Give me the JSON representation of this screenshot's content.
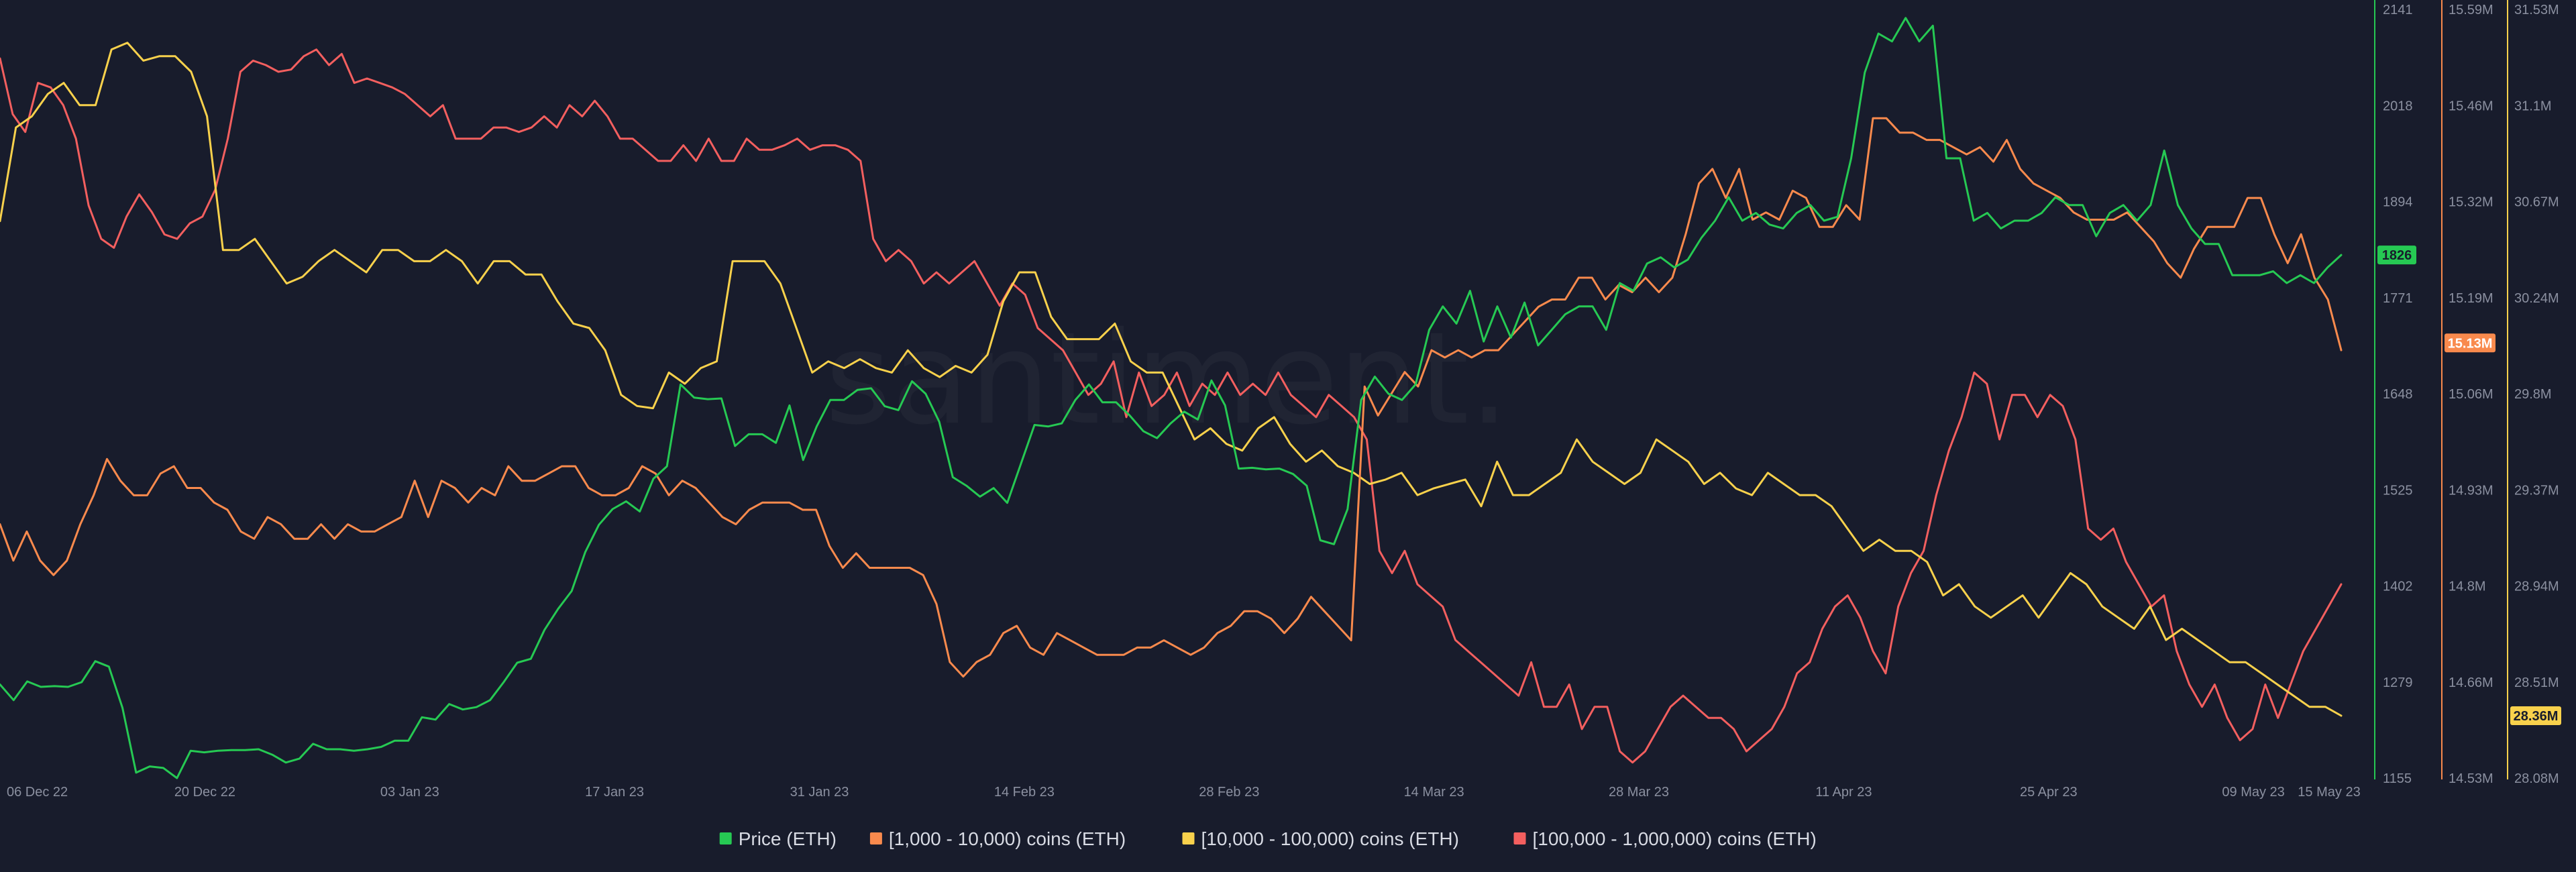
{
  "chart_data": {
    "type": "line",
    "watermark": "santiment.",
    "x_labels": [
      "06 Dec 22",
      "20 Dec 22",
      "03 Jan 23",
      "17 Jan 23",
      "31 Jan 23",
      "14 Feb 23",
      "28 Feb 23",
      "14 Mar 23",
      "28 Mar 23",
      "11 Apr 23",
      "25 Apr 23",
      "09 May 23",
      "15 May 23"
    ],
    "x_range": [
      "2022-12-06",
      "2023-05-15"
    ],
    "x_label_positions_days": [
      0,
      14,
      28,
      42,
      56,
      70,
      84,
      98,
      112,
      126,
      140,
      154,
      160
    ],
    "axes": [
      {
        "id": "price",
        "series": "Price (ETH)",
        "color": "#26c953",
        "min": 1155,
        "max": 2141,
        "ticks": [
          "2141",
          "2018",
          "1894",
          "1771",
          "1648",
          "1525",
          "1402",
          "1279",
          "1155"
        ],
        "current": "1826"
      },
      {
        "id": "c1k",
        "series": "[1,000 - 10,000) coins (ETH)",
        "color": "#f98a4d",
        "min": 14.53,
        "max": 15.59,
        "ticks": [
          "15.59M",
          "15.46M",
          "15.32M",
          "15.19M",
          "15.06M",
          "14.93M",
          "14.8M",
          "14.66M",
          "14.53M"
        ],
        "current": "15.13M"
      },
      {
        "id": "c10k",
        "series": "[10,000 - 100,000) coins (ETH)",
        "color": "#f8d14c",
        "min": 28.08,
        "max": 31.53,
        "ticks": [
          "31.53M",
          "31.1M",
          "30.67M",
          "30.24M",
          "29.8M",
          "29.37M",
          "28.94M",
          "28.51M",
          "28.08M"
        ],
        "current": "28.36M"
      }
    ],
    "series": [
      {
        "name": "Price (ETH)",
        "color": "#26c953",
        "axis": "price",
        "values": [
          1275,
          1255,
          1279,
          1272,
          1273,
          1272,
          1278,
          1305,
          1298,
          1245,
          1162,
          1170,
          1168,
          1155,
          1190,
          1188,
          1190,
          1191,
          1191,
          1192,
          1185,
          1175,
          1180,
          1199,
          1192,
          1192,
          1190,
          1192,
          1195,
          1203,
          1203,
          1233,
          1230,
          1250,
          1243,
          1246,
          1255,
          1278,
          1303,
          1308,
          1345,
          1372,
          1395,
          1445,
          1480,
          1500,
          1510,
          1497,
          1539,
          1555,
          1660,
          1643,
          1641,
          1642,
          1581,
          1596,
          1596,
          1585,
          1633,
          1563,
          1606,
          1640,
          1640,
          1653,
          1655,
          1632,
          1627,
          1664,
          1648,
          1612,
          1541,
          1530,
          1516,
          1527,
          1508,
          1558,
          1608,
          1606,
          1610,
          1640,
          1660,
          1637,
          1637,
          1620,
          1600,
          1591,
          1610,
          1625,
          1615,
          1665,
          1633,
          1552,
          1553,
          1551,
          1552,
          1545,
          1530,
          1460,
          1455,
          1500,
          1640,
          1670,
          1648,
          1640,
          1660,
          1730,
          1760,
          1738,
          1780,
          1715,
          1760,
          1720,
          1765,
          1710,
          1730,
          1750,
          1760,
          1760,
          1730,
          1790,
          1780,
          1815,
          1823,
          1810,
          1820,
          1848,
          1870,
          1900,
          1870,
          1880,
          1865,
          1860,
          1880,
          1890,
          1870,
          1875,
          1950,
          2060,
          2110,
          2100,
          2130,
          2100,
          2120,
          1950,
          1950,
          1870,
          1880,
          1860,
          1870,
          1870,
          1880,
          1900,
          1890,
          1890,
          1850,
          1880,
          1890,
          1870,
          1890,
          1960,
          1890,
          1860,
          1840,
          1840,
          1800,
          1800,
          1800,
          1805,
          1790,
          1800,
          1790,
          1810,
          1826
        ]
      },
      {
        "name": "[1,000 - 10,000) coins (ETH)",
        "color": "#f98a4d",
        "axis": "c1k",
        "values": [
          14.88,
          14.83,
          14.87,
          14.83,
          14.81,
          14.83,
          14.88,
          14.92,
          14.97,
          14.94,
          14.92,
          14.92,
          14.95,
          14.96,
          14.93,
          14.93,
          14.91,
          14.9,
          14.87,
          14.86,
          14.89,
          14.88,
          14.86,
          14.86,
          14.88,
          14.86,
          14.88,
          14.87,
          14.87,
          14.88,
          14.89,
          14.94,
          14.89,
          14.94,
          14.93,
          14.91,
          14.93,
          14.92,
          14.96,
          14.94,
          14.94,
          14.95,
          14.96,
          14.96,
          14.93,
          14.92,
          14.92,
          14.93,
          14.96,
          14.95,
          14.92,
          14.94,
          14.93,
          14.91,
          14.89,
          14.88,
          14.9,
          14.91,
          14.91,
          14.91,
          14.9,
          14.9,
          14.85,
          14.82,
          14.84,
          14.82,
          14.82,
          14.82,
          14.82,
          14.81,
          14.77,
          14.69,
          14.67,
          14.69,
          14.7,
          14.73,
          14.74,
          14.71,
          14.7,
          14.73,
          14.72,
          14.71,
          14.7,
          14.7,
          14.7,
          14.71,
          14.71,
          14.72,
          14.71,
          14.7,
          14.71,
          14.73,
          14.74,
          14.76,
          14.76,
          14.75,
          14.73,
          14.75,
          14.78,
          14.76,
          14.74,
          14.72,
          15.07,
          15.03,
          15.06,
          15.09,
          15.07,
          15.12,
          15.11,
          15.12,
          15.11,
          15.12,
          15.12,
          15.14,
          15.16,
          15.18,
          15.19,
          15.19,
          15.22,
          15.22,
          15.19,
          15.21,
          15.2,
          15.22,
          15.2,
          15.22,
          15.28,
          15.35,
          15.37,
          15.33,
          15.37,
          15.3,
          15.31,
          15.3,
          15.34,
          15.33,
          15.29,
          15.29,
          15.32,
          15.3,
          15.44,
          15.44,
          15.42,
          15.42,
          15.41,
          15.41,
          15.4,
          15.39,
          15.4,
          15.38,
          15.41,
          15.37,
          15.35,
          15.34,
          15.33,
          15.31,
          15.3,
          15.3,
          15.3,
          15.31,
          15.29,
          15.27,
          15.24,
          15.22,
          15.26,
          15.29,
          15.29,
          15.29,
          15.33,
          15.33,
          15.28,
          15.24,
          15.28,
          15.22,
          15.19,
          15.12
        ]
      },
      {
        "name": "[10,000 - 100,000) coins (ETH)",
        "color": "#f8d14c",
        "axis": "c10k",
        "values": [
          30.58,
          31.0,
          31.05,
          31.15,
          31.2,
          31.1,
          31.1,
          31.35,
          31.38,
          31.3,
          31.32,
          31.32,
          31.25,
          31.05,
          30.45,
          30.45,
          30.5,
          30.4,
          30.3,
          30.33,
          30.4,
          30.45,
          30.4,
          30.35,
          30.45,
          30.45,
          30.4,
          30.4,
          30.45,
          30.4,
          30.3,
          30.4,
          30.4,
          30.34,
          30.34,
          30.22,
          30.12,
          30.1,
          30.0,
          29.8,
          29.75,
          29.74,
          29.9,
          29.85,
          29.92,
          29.95,
          30.4,
          30.4,
          30.4,
          30.3,
          30.1,
          29.9,
          29.95,
          29.92,
          29.96,
          29.92,
          29.9,
          30.0,
          29.92,
          29.88,
          29.93,
          29.9,
          29.98,
          30.22,
          30.35,
          30.35,
          30.15,
          30.05,
          30.05,
          30.05,
          30.12,
          29.95,
          29.9,
          29.9,
          29.75,
          29.6,
          29.65,
          29.58,
          29.55,
          29.65,
          29.7,
          29.58,
          29.5,
          29.55,
          29.48,
          29.45,
          29.4,
          29.42,
          29.45,
          29.35,
          29.38,
          29.4,
          29.42,
          29.3,
          29.5,
          29.35,
          29.35,
          29.4,
          29.45,
          29.6,
          29.5,
          29.45,
          29.4,
          29.45,
          29.6,
          29.55,
          29.5,
          29.4,
          29.45,
          29.38,
          29.35,
          29.45,
          29.4,
          29.35,
          29.35,
          29.3,
          29.2,
          29.1,
          29.15,
          29.1,
          29.1,
          29.05,
          28.9,
          28.95,
          28.85,
          28.8,
          28.85,
          28.9,
          28.8,
          28.9,
          29.0,
          28.95,
          28.85,
          28.8,
          28.75,
          28.85,
          28.7,
          28.75,
          28.7,
          28.65,
          28.6,
          28.6,
          28.55,
          28.5,
          28.45,
          28.4,
          28.4,
          28.36
        ]
      },
      {
        "name": "[100,000  - 1,000,000) coins (ETH)",
        "color": "#f35f5f",
        "axis": "c10k",
        "values": [
          31.31,
          31.06,
          30.98,
          31.2,
          31.18,
          31.1,
          30.95,
          30.65,
          30.5,
          30.46,
          30.6,
          30.7,
          30.62,
          30.52,
          30.5,
          30.57,
          30.6,
          30.72,
          30.95,
          31.25,
          31.3,
          31.28,
          31.25,
          31.26,
          31.32,
          31.35,
          31.28,
          31.33,
          31.2,
          31.22,
          31.2,
          31.18,
          31.15,
          31.1,
          31.05,
          31.1,
          30.95,
          30.95,
          30.95,
          31.0,
          31.0,
          30.98,
          31.0,
          31.05,
          31.0,
          31.1,
          31.05,
          31.12,
          31.05,
          30.95,
          30.95,
          30.9,
          30.85,
          30.85,
          30.92,
          30.85,
          30.95,
          30.85,
          30.85,
          30.95,
          30.9,
          30.9,
          30.92,
          30.95,
          30.9,
          30.92,
          30.92,
          30.9,
          30.85,
          30.5,
          30.4,
          30.45,
          30.4,
          30.3,
          30.35,
          30.3,
          30.35,
          30.4,
          30.3,
          30.2,
          30.3,
          30.25,
          30.1,
          30.05,
          30.0,
          29.9,
          29.8,
          29.85,
          29.95,
          29.7,
          29.9,
          29.75,
          29.8,
          29.9,
          29.75,
          29.85,
          29.8,
          29.9,
          29.8,
          29.85,
          29.8,
          29.9,
          29.8,
          29.75,
          29.7,
          29.8,
          29.75,
          29.7,
          29.6,
          29.1,
          29.0,
          29.1,
          28.95,
          28.9,
          28.85,
          28.7,
          28.65,
          28.6,
          28.55,
          28.5,
          28.45,
          28.6,
          28.4,
          28.4,
          28.5,
          28.3,
          28.4,
          28.4,
          28.2,
          28.15,
          28.2,
          28.3,
          28.4,
          28.45,
          28.4,
          28.35,
          28.35,
          28.3,
          28.2,
          28.25,
          28.3,
          28.4,
          28.55,
          28.6,
          28.75,
          28.85,
          28.9,
          28.8,
          28.65,
          28.55,
          28.85,
          29.0,
          29.1,
          29.35,
          29.55,
          29.7,
          29.9,
          29.85,
          29.6,
          29.8,
          29.8,
          29.7,
          29.8,
          29.75,
          29.6,
          29.2,
          29.15,
          29.2,
          29.05,
          28.95,
          28.85,
          28.9,
          28.65,
          28.5,
          28.4,
          28.5,
          28.35,
          28.25,
          28.3,
          28.5,
          28.35,
          28.5,
          28.65,
          28.75,
          28.85,
          28.95
        ]
      }
    ],
    "legend": {
      "position": "bottom-center",
      "items": [
        {
          "label": "Price (ETH)",
          "color": "#26c953"
        },
        {
          "label": "[1,000 - 10,000) coins (ETH)",
          "color": "#f98a4d"
        },
        {
          "label": "[10,000 - 100,000) coins (ETH)",
          "color": "#f8d14c"
        },
        {
          "label": "[100,000  - 1,000,000) coins (ETH)",
          "color": "#f35f5f"
        }
      ]
    },
    "grid": false
  },
  "colors": {
    "background": "#181c2c",
    "axis_text": "#8b90a0",
    "axis_line": "#2a2f40",
    "legend_text": "#d8dbe4"
  }
}
